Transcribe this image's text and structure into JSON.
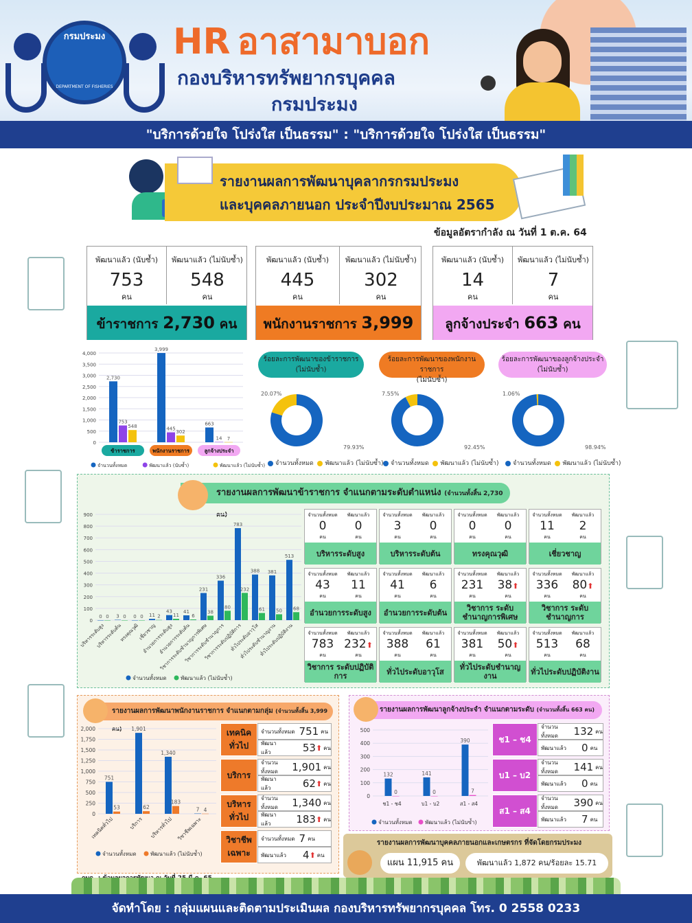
{
  "banner": {
    "logo_text": "กรมประมง",
    "logo_sub": "DEPARTMENT OF FISHERIES",
    "title_hr": "HR",
    "title_th": "อาสามาบอก",
    "dept": "กองบริหารทรัพยากรบุคคล",
    "dept2": "กรมประมง",
    "slogan": "\"บริการด้วยใจ โปร่งใส เป็นธรรม\" : \"บริการด้วยใจ โปร่งใส เป็นธรรม\""
  },
  "report": {
    "title1": "รายงานผลการพัฒนาบุคลากรกรมประมง",
    "title2": "และบุคคลภายนอก ประจำปีงบประมาณ 2565",
    "asof": "ข้อมูลอัตรากำลัง ณ วันที่ 1 ต.ค. 64"
  },
  "summary": {
    "h1": "พัฒนาแล้ว (นับซ้ำ)",
    "h2": "พัฒนาแล้ว (ไม่นับซ้ำ)",
    "unit": "คน",
    "civil": {
      "dev_dup": "753",
      "dev_nodup": "548",
      "label": "ข้าราชการ",
      "total": "2,730",
      "unit": "คน",
      "color": "#1aa9a0"
    },
    "gov_emp": {
      "dev_dup": "445",
      "dev_nodup": "302",
      "label": "พนักงานราชการ",
      "total": "3,999",
      "unit": "คน",
      "color": "#ef7b23"
    },
    "perm": {
      "dev_dup": "14",
      "dev_nodup": "7",
      "label": "ลูกจ้างประจำ",
      "total": "663",
      "unit": "คน",
      "color": "#f2a8f2"
    }
  },
  "donuts": {
    "civil": {
      "title": "ร้อยละการพัฒนาของข้าราชการ",
      "sub": "(ไม่นับซ้ำ)",
      "a": "20.07%",
      "b": "79.93%"
    },
    "gov_emp": {
      "title": "ร้อยละการพัฒนาของพนักงานราชการ",
      "sub": "(ไม่นับซ้ำ)",
      "a": "7.55%",
      "b": "92.45%"
    },
    "perm": {
      "title": "ร้อยละการพัฒนาของลูกจ้างประจำ",
      "sub": "(ไม่นับซ้ำ)",
      "a": "1.06%",
      "b": "98.94%"
    },
    "legend_total": "จำนวนทั้งหมด",
    "legend_dev": "พัฒนาแล้ว (ไม่นับซ้ำ)"
  },
  "sec2": {
    "title": "รายงานผลการพัฒนาข้าราชการ จำแนกตามระดับตำแหน่ง",
    "title_small": "(จำนวนทั้งสิ้น 2,730 คน)",
    "h_total": "จำนวนทั้งหมด",
    "h_dev": "พัฒนาแล้ว",
    "unit": "คน",
    "legend_total": "จำนวนทั้งหมด",
    "legend_dev": "พัฒนาแล้ว (ไม่นับซ้ำ)",
    "cards": [
      {
        "total": "0",
        "dev": "0",
        "label": "บริหารระดับสูง",
        "up": ""
      },
      {
        "total": "3",
        "dev": "0",
        "label": "บริหารระดับต้น",
        "up": ""
      },
      {
        "total": "0",
        "dev": "0",
        "label": "ทรงคุณวุฒิ",
        "up": ""
      },
      {
        "total": "11",
        "dev": "2",
        "label": "เชี่ยวชาญ",
        "up": ""
      },
      {
        "total": "43",
        "dev": "11",
        "label": "อำนวยการระดับสูง",
        "up": ""
      },
      {
        "total": "41",
        "dev": "6",
        "label": "อำนวยการระดับต้น",
        "up": ""
      },
      {
        "total": "231",
        "dev": "38",
        "label": "วิชาการ ระดับชำนาญการพิเศษ",
        "up": "⬆"
      },
      {
        "total": "336",
        "dev": "80",
        "label": "วิชาการ ระดับชำนาญการ",
        "up": "⬆"
      },
      {
        "total": "783",
        "dev": "232",
        "label": "วิชาการ ระดับปฏิบัติการ",
        "up": "⬆"
      },
      {
        "total": "388",
        "dev": "61",
        "label": "ทั่วไประดับอาวุโส",
        "up": ""
      },
      {
        "total": "381",
        "dev": "50",
        "label": "ทั่วไประดับชำนาญงาน",
        "up": "⬆"
      },
      {
        "total": "513",
        "dev": "68",
        "label": "ทั่วไประดับปฏิบัติงาน",
        "up": ""
      }
    ]
  },
  "sec3": {
    "title": "รายงานผลการพัฒนาพนักงานราชการ จำแนกตามกลุ่ม",
    "title_small": "(จำนวนทั้งสิ้น 3,999 คน)",
    "legend_total": "จำนวนทั้งหมด",
    "legend_dev": "พัฒนาแล้ว (ไม่นับซ้ำ)",
    "row_total": "จำนวนทั้งหมด",
    "row_dev": "พัฒนาแล้ว",
    "unit": "คน",
    "groups": [
      {
        "label": "เทคนิคทั่วไป",
        "total": "751",
        "dev": "53"
      },
      {
        "label": "บริการ",
        "total": "1,901",
        "dev": "62"
      },
      {
        "label": "บริหารทั่วไป",
        "total": "1,340",
        "dev": "183"
      },
      {
        "label": "วิชาชีพเฉพาะ",
        "total": "7",
        "dev": "4"
      }
    ],
    "note": "กบค. : ข้อมูลผลการพัฒนา ณ วันที่ 25 มี.ค. 65"
  },
  "sec4": {
    "title": "รายงานผลการพัฒนาลูกจ้างประจำ จำแนกตามระดับ",
    "title_small": "(จำนวนทั้งสิ้น 663 คน)",
    "legend_total": "จำนวนทั้งหมด",
    "legend_dev": "พัฒนาแล้ว (ไม่นับซ้ำ)",
    "row_total": "จำนวนทั้งหมด",
    "row_dev": "พัฒนาแล้ว",
    "unit": "คน",
    "levels": [
      {
        "label": "ช1 – ช4",
        "total": "132",
        "dev": "0"
      },
      {
        "label": "บ1 – บ2",
        "total": "141",
        "dev": "0"
      },
      {
        "label": "ส1 – ส4",
        "total": "390",
        "dev": "7"
      }
    ]
  },
  "sec5": {
    "title": "รายงานผลการพัฒนาบุคคลภายนอกและเกษตรกร ที่จัดโดยกรมประมง",
    "plan": "แผน 11,915 คน",
    "done": "พัฒนาแล้ว 1,872 คน/ร้อยละ 15.71"
  },
  "footer": "จัดทำโดย : กลุ่มแผนและติดตามประเมินผล กองบริหารทรัพยากรบุคคล โทร. 0 2558 0233",
  "chart_data": [
    {
      "type": "bar",
      "title": "",
      "categories": [
        "ข้าราชการ",
        "พนักงานราชการ",
        "ลูกจ้างประจำ"
      ],
      "ylim": [
        0,
        4000
      ],
      "yticks": [
        "0",
        "500",
        "1,000",
        "1,500",
        "2,000",
        "2,500",
        "3,000",
        "3,500",
        "4,000"
      ],
      "series": [
        {
          "name": "จำนวนทั้งหมด",
          "color": "#1565c0",
          "values": [
            2730,
            3999,
            663
          ],
          "labels": [
            "2,730",
            "3,999",
            "663"
          ]
        },
        {
          "name": "พัฒนาแล้ว (นับซ้ำ)",
          "color": "#8e44e8",
          "values": [
            753,
            445,
            14
          ],
          "labels": [
            "753",
            "445",
            "14"
          ]
        },
        {
          "name": "พัฒนาแล้ว (ไม่นับซ้ำ)",
          "color": "#f4c20d",
          "values": [
            548,
            302,
            7
          ],
          "labels": [
            "548",
            "302",
            "7"
          ]
        }
      ]
    },
    {
      "type": "pie",
      "title": "ร้อยละการพัฒนาของข้าราชการ (ไม่นับซ้ำ)",
      "slices": [
        {
          "name": "จำนวนทั้งหมด",
          "value": 79.93
        },
        {
          "name": "พัฒนาแล้ว (ไม่นับซ้ำ)",
          "value": 20.07
        }
      ]
    },
    {
      "type": "pie",
      "title": "ร้อยละการพัฒนาของพนักงานราชการ (ไม่นับซ้ำ)",
      "slices": [
        {
          "name": "จำนวนทั้งหมด",
          "value": 92.45
        },
        {
          "name": "พัฒนาแล้ว (ไม่นับซ้ำ)",
          "value": 7.55
        }
      ]
    },
    {
      "type": "pie",
      "title": "ร้อยละการพัฒนาของลูกจ้างประจำ (ไม่นับซ้ำ)",
      "slices": [
        {
          "name": "จำนวนทั้งหมด",
          "value": 98.94
        },
        {
          "name": "พัฒนาแล้ว (ไม่นับซ้ำ)",
          "value": 1.06
        }
      ]
    },
    {
      "type": "bar",
      "title": "รายงานผลการพัฒนาข้าราชการ จำแนกตามระดับตำแหน่ง",
      "categories": [
        "บริหารระดับสูง",
        "บริหารระดับต้น",
        "ทรงคุณวุฒิ",
        "เชี่ยวชาญ",
        "อำนวยการระดับสูง",
        "อำนวยการระดับต้น",
        "วิชาการระดับชำนาญการพิเศษ",
        "วิชาการระดับชำนาญการ",
        "วิชาการระดับปฏิบัติการ",
        "ทั่วไประดับอาวุโส",
        "ทั่วไประดับชำนาญงาน",
        "ทั่วไประดับปฏิบัติงาน"
      ],
      "ylim": [
        0,
        900
      ],
      "yticks": [
        "0",
        "100",
        "200",
        "300",
        "400",
        "500",
        "600",
        "700",
        "800",
        "900"
      ],
      "series": [
        {
          "name": "จำนวนทั้งหมด",
          "color": "#1565c0",
          "values": [
            0,
            3,
            0,
            11,
            43,
            41,
            231,
            336,
            783,
            388,
            381,
            513
          ]
        },
        {
          "name": "พัฒนาแล้ว (ไม่นับซ้ำ)",
          "color": "#2eb85c",
          "values": [
            0,
            0,
            0,
            2,
            11,
            6,
            38,
            80,
            232,
            61,
            50,
            68
          ]
        }
      ]
    },
    {
      "type": "bar",
      "title": "รายงานผลการพัฒนาพนักงานราชการ จำแนกตามกลุ่ม",
      "categories": [
        "เทคนิคทั่วไป",
        "บริการ",
        "บริหารทั่วไป",
        "วิชาชีพเฉพาะ"
      ],
      "ylim": [
        0,
        2000
      ],
      "yticks": [
        "0",
        "250",
        "500",
        "750",
        "1,000",
        "1,250",
        "1,500",
        "1,750",
        "2,000"
      ],
      "series": [
        {
          "name": "จำนวนทั้งหมด",
          "color": "#1565c0",
          "values": [
            751,
            1901,
            1340,
            7
          ],
          "labels": [
            "751",
            "1,901",
            "1,340",
            "7"
          ]
        },
        {
          "name": "พัฒนาแล้ว (ไม่นับซ้ำ)",
          "color": "#ee7a2a",
          "values": [
            53,
            62,
            183,
            4
          ],
          "labels": [
            "53",
            "62",
            "183",
            "4"
          ]
        }
      ]
    },
    {
      "type": "bar",
      "title": "รายงานผลการพัฒนาลูกจ้างประจำ จำแนกตามระดับ",
      "categories": [
        "ช1 - ช4",
        "บ1 - บ2",
        "ส1 - ส4"
      ],
      "ylim": [
        0,
        500
      ],
      "yticks": [
        "0",
        "100",
        "200",
        "300",
        "400",
        "500"
      ],
      "series": [
        {
          "name": "จำนวนทั้งหมด",
          "color": "#1565c0",
          "values": [
            132,
            141,
            390
          ]
        },
        {
          "name": "พัฒนาแล้ว (ไม่นับซ้ำ)",
          "color": "#e84fc8",
          "values": [
            0,
            0,
            7
          ]
        }
      ]
    }
  ]
}
